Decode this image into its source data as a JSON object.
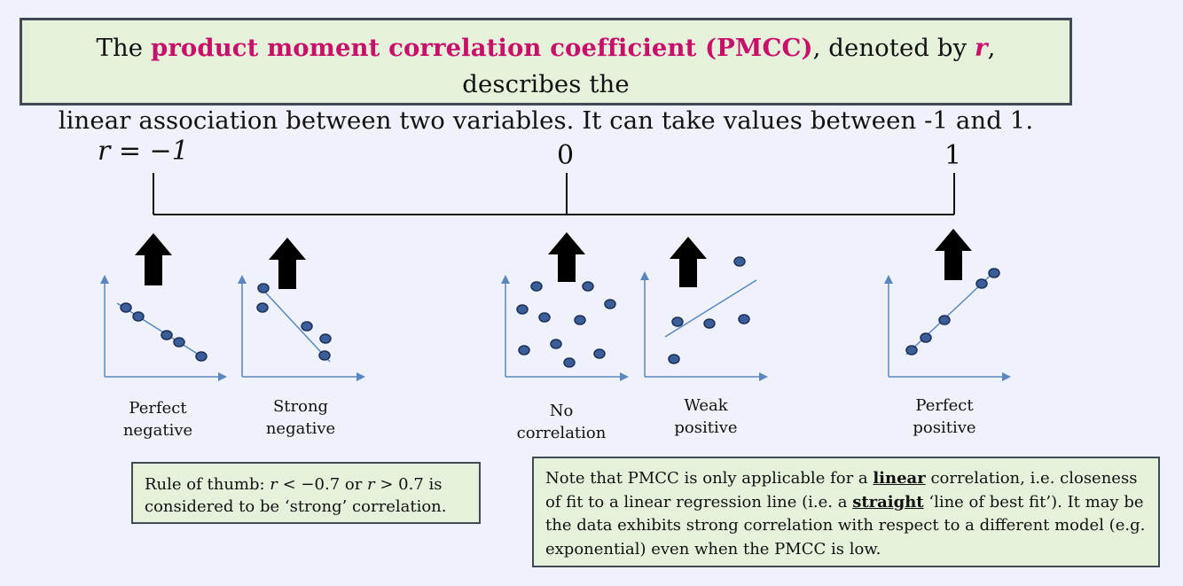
{
  "title": {
    "line1_pre": "The ",
    "line1_highlight": "product moment correlation coefficient (PMCC)",
    "line1_mid": ", denoted by ",
    "line1_r": "r",
    "line1_post": ", describes the",
    "line2": "linear association between two variables. It can take values between -1 and 1."
  },
  "scale": {
    "left_label": "r = −1",
    "mid_label": "0",
    "right_label": "1"
  },
  "examples": [
    {
      "label_line1": "Perfect",
      "label_line2": "negative"
    },
    {
      "label_line1": "Strong",
      "label_line2": "negative"
    },
    {
      "label_line1": "No",
      "label_line2": "correlation"
    },
    {
      "label_line1": "Weak",
      "label_line2": "positive"
    },
    {
      "label_line1": "Perfect",
      "label_line2": "positive"
    }
  ],
  "rule_box": {
    "text_a": "Rule of thumb: ",
    "r1": "r",
    "text_b": " < −0.7 or ",
    "r2": "r",
    "text_c": " > 0.7 is",
    "line2": "considered to be ‘strong’ correlation."
  },
  "note_box": {
    "t1": "Note that PMCC is only applicable for a ",
    "linear": "linear",
    "t2": " correlation, i.e. closeness of fit to a linear regression line (i.e. a ",
    "straight": "straight",
    "t3": " ‘line of best fit’). It may be the data exhibits strong correlation with respect to a different model (e.g. exponential) even when the PMCC is low."
  },
  "colors": {
    "highlight": "#c8106a",
    "box_bg": "#e6f1dc",
    "box_border": "#3f4a55",
    "axis": "#5b86c0",
    "point_fill": "#3b5e9a",
    "point_stroke": "#1c2f55"
  }
}
